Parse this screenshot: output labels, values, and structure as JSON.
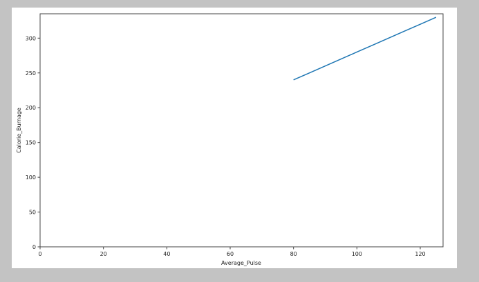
{
  "chart_data": {
    "type": "line",
    "title": "",
    "xlabel": "Average_Pulse",
    "ylabel": "Calorie_Burnage",
    "xlim": [
      0,
      127.2
    ],
    "ylim": [
      0,
      335
    ],
    "xticks": [
      0,
      20,
      40,
      60,
      80,
      100,
      120
    ],
    "yticks": [
      0,
      50,
      100,
      150,
      200,
      250,
      300
    ],
    "grid": false,
    "series": [
      {
        "color": "#1f77b4",
        "x": [
          80,
          85,
          90,
          95,
          100,
          105,
          110,
          115,
          120,
          125
        ],
        "y": [
          240,
          250,
          260,
          270,
          280,
          290,
          300,
          310,
          320,
          330
        ]
      }
    ]
  }
}
